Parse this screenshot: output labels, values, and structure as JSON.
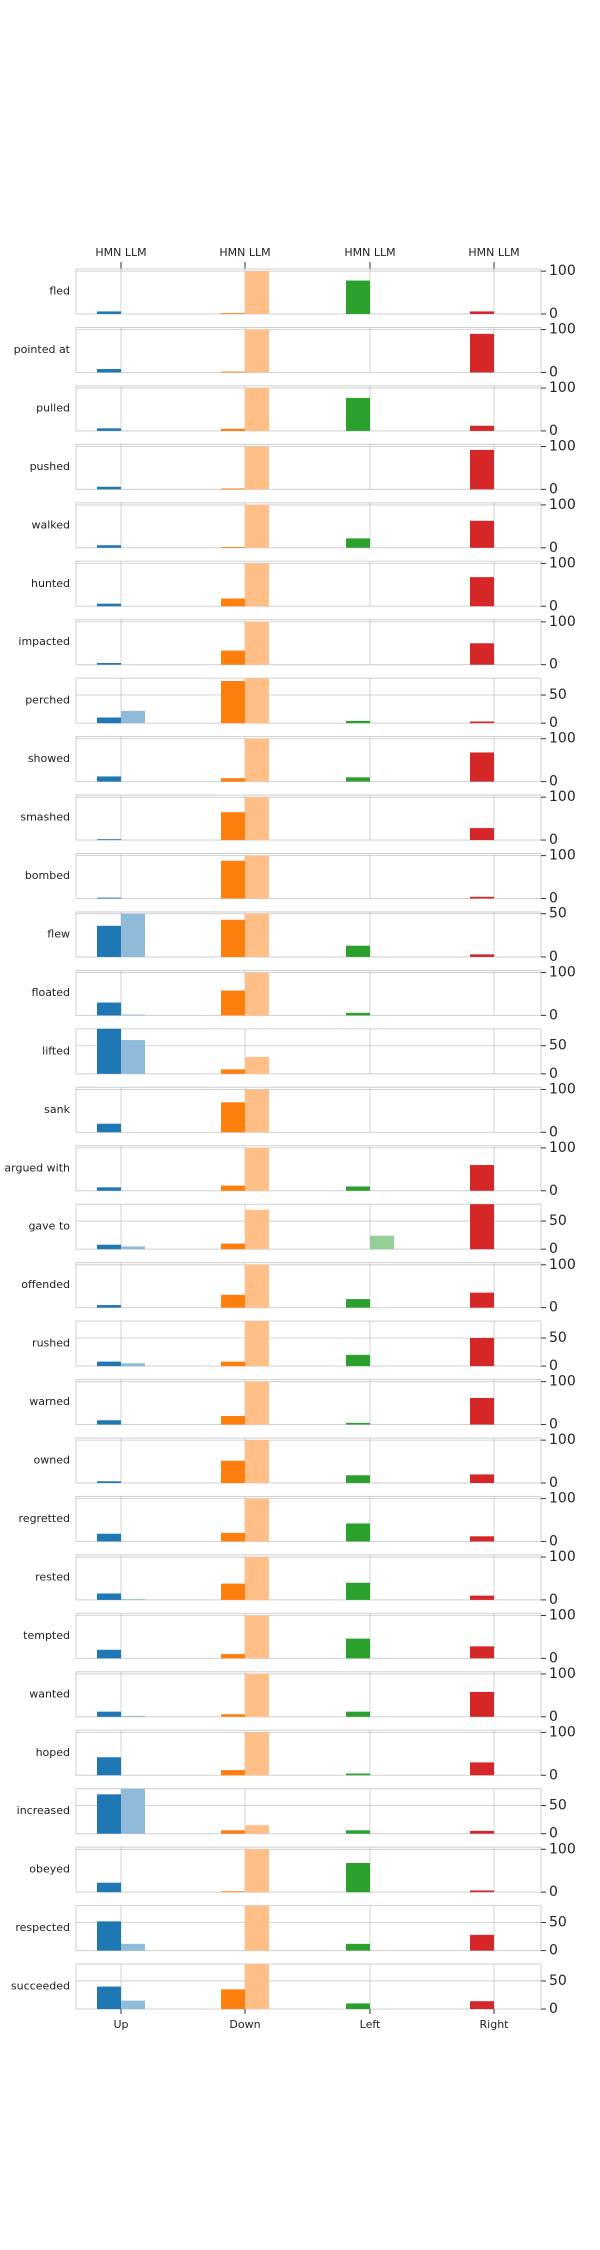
{
  "chart_data": {
    "type": "bar",
    "categories": [
      "Up",
      "Down",
      "Left",
      "Right"
    ],
    "series": [
      {
        "name": "HMN"
      },
      {
        "name": "LLM"
      }
    ],
    "top_tick_label": "HMN LLM",
    "colors": {
      "Up": [
        "#1f77b4",
        "#8fbbd9"
      ],
      "Down": [
        "#ff7f0e",
        "#ffbf86"
      ],
      "Left": [
        "#2ca02c",
        "#95cf95"
      ],
      "Right": [
        "#d62728",
        "#ea9293"
      ],
      "grid": "#b0b0b0"
    },
    "rows": [
      {
        "verb": "fled",
        "yticks": [
          0,
          100
        ],
        "ymax": 105,
        "values": [
          [
            6,
            0
          ],
          [
            2,
            100
          ],
          [
            78,
            0
          ],
          [
            6,
            0
          ]
        ]
      },
      {
        "verb": "pointed at",
        "yticks": [
          0,
          100
        ],
        "ymax": 105,
        "values": [
          [
            8,
            0
          ],
          [
            2,
            100
          ],
          [
            0,
            0
          ],
          [
            90,
            0
          ]
        ]
      },
      {
        "verb": "pulled",
        "yticks": [
          0,
          100
        ],
        "ymax": 105,
        "values": [
          [
            6,
            0
          ],
          [
            5,
            100
          ],
          [
            77,
            0
          ],
          [
            12,
            0
          ]
        ]
      },
      {
        "verb": "pushed",
        "yticks": [
          0,
          100
        ],
        "ymax": 105,
        "values": [
          [
            6,
            0
          ],
          [
            2,
            100
          ],
          [
            0,
            0
          ],
          [
            92,
            0
          ]
        ]
      },
      {
        "verb": "walked",
        "yticks": [
          0,
          100
        ],
        "ymax": 105,
        "values": [
          [
            6,
            0
          ],
          [
            2,
            100
          ],
          [
            22,
            0
          ],
          [
            63,
            0
          ]
        ]
      },
      {
        "verb": "hunted",
        "yticks": [
          0,
          100
        ],
        "ymax": 105,
        "values": [
          [
            6,
            0
          ],
          [
            18,
            100
          ],
          [
            0,
            0
          ],
          [
            68,
            0
          ]
        ]
      },
      {
        "verb": "impacted",
        "yticks": [
          0,
          100
        ],
        "ymax": 105,
        "values": [
          [
            4,
            0
          ],
          [
            33,
            100
          ],
          [
            0,
            0
          ],
          [
            50,
            0
          ]
        ]
      },
      {
        "verb": "perched",
        "yticks": [
          0,
          50
        ],
        "ymax": 80,
        "values": [
          [
            10,
            22
          ],
          [
            75,
            80
          ],
          [
            4,
            0
          ],
          [
            3,
            0
          ]
        ]
      },
      {
        "verb": "showed",
        "yticks": [
          0,
          100
        ],
        "ymax": 105,
        "values": [
          [
            12,
            0
          ],
          [
            8,
            100
          ],
          [
            10,
            0
          ],
          [
            68,
            0
          ]
        ]
      },
      {
        "verb": "smashed",
        "yticks": [
          0,
          100
        ],
        "ymax": 105,
        "values": [
          [
            2,
            0
          ],
          [
            65,
            100
          ],
          [
            0,
            0
          ],
          [
            28,
            0
          ]
        ]
      },
      {
        "verb": "bombed",
        "yticks": [
          0,
          100
        ],
        "ymax": 105,
        "values": [
          [
            2,
            0
          ],
          [
            88,
            100
          ],
          [
            0,
            0
          ],
          [
            4,
            0
          ]
        ]
      },
      {
        "verb": "flew",
        "yticks": [
          0,
          50
        ],
        "ymax": 52,
        "values": [
          [
            36,
            50
          ],
          [
            43,
            50
          ],
          [
            13,
            0
          ],
          [
            3,
            0
          ]
        ]
      },
      {
        "verb": "floated",
        "yticks": [
          0,
          100
        ],
        "ymax": 105,
        "values": [
          [
            30,
            2
          ],
          [
            58,
            100
          ],
          [
            6,
            0
          ],
          [
            0,
            0
          ]
        ]
      },
      {
        "verb": "lifted",
        "yticks": [
          0,
          50
        ],
        "ymax": 80,
        "values": [
          [
            80,
            60
          ],
          [
            8,
            30
          ],
          [
            0,
            0
          ],
          [
            0,
            0
          ]
        ]
      },
      {
        "verb": "sank",
        "yticks": [
          0,
          100
        ],
        "ymax": 105,
        "values": [
          [
            20,
            0
          ],
          [
            70,
            100
          ],
          [
            0,
            0
          ],
          [
            0,
            0
          ]
        ]
      },
      {
        "verb": "argued with",
        "yticks": [
          0,
          100
        ],
        "ymax": 105,
        "values": [
          [
            8,
            0
          ],
          [
            12,
            100
          ],
          [
            10,
            0
          ],
          [
            60,
            0
          ]
        ]
      },
      {
        "verb": "gave to",
        "yticks": [
          0,
          50
        ],
        "ymax": 80,
        "values": [
          [
            8,
            5
          ],
          [
            10,
            70
          ],
          [
            0,
            24
          ],
          [
            80,
            0
          ]
        ]
      },
      {
        "verb": "offended",
        "yticks": [
          0,
          100
        ],
        "ymax": 105,
        "values": [
          [
            6,
            0
          ],
          [
            30,
            100
          ],
          [
            20,
            0
          ],
          [
            35,
            0
          ]
        ]
      },
      {
        "verb": "rushed",
        "yticks": [
          0,
          50
        ],
        "ymax": 80,
        "values": [
          [
            8,
            5
          ],
          [
            8,
            80
          ],
          [
            20,
            0
          ],
          [
            50,
            0
          ]
        ]
      },
      {
        "verb": "warned",
        "yticks": [
          0,
          100
        ],
        "ymax": 105,
        "values": [
          [
            10,
            0
          ],
          [
            20,
            100
          ],
          [
            4,
            0
          ],
          [
            62,
            0
          ]
        ]
      },
      {
        "verb": "owned",
        "yticks": [
          0,
          100
        ],
        "ymax": 105,
        "values": [
          [
            4,
            0
          ],
          [
            52,
            100
          ],
          [
            18,
            0
          ],
          [
            20,
            0
          ]
        ]
      },
      {
        "verb": "regretted",
        "yticks": [
          0,
          100
        ],
        "ymax": 105,
        "values": [
          [
            18,
            0
          ],
          [
            20,
            100
          ],
          [
            42,
            0
          ],
          [
            12,
            0
          ]
        ]
      },
      {
        "verb": "rested",
        "yticks": [
          0,
          100
        ],
        "ymax": 105,
        "values": [
          [
            15,
            2
          ],
          [
            38,
            100
          ],
          [
            40,
            0
          ],
          [
            10,
            0
          ]
        ]
      },
      {
        "verb": "tempted",
        "yticks": [
          0,
          100
        ],
        "ymax": 105,
        "values": [
          [
            20,
            0
          ],
          [
            10,
            100
          ],
          [
            46,
            0
          ],
          [
            28,
            0
          ]
        ]
      },
      {
        "verb": "wanted",
        "yticks": [
          0,
          100
        ],
        "ymax": 105,
        "values": [
          [
            12,
            2
          ],
          [
            6,
            100
          ],
          [
            12,
            0
          ],
          [
            58,
            0
          ]
        ]
      },
      {
        "verb": "hoped",
        "yticks": [
          0,
          100
        ],
        "ymax": 105,
        "values": [
          [
            42,
            0
          ],
          [
            12,
            100
          ],
          [
            4,
            0
          ],
          [
            30,
            0
          ]
        ]
      },
      {
        "verb": "increased",
        "yticks": [
          0,
          50
        ],
        "ymax": 80,
        "values": [
          [
            70,
            80
          ],
          [
            6,
            15
          ],
          [
            6,
            0
          ],
          [
            5,
            0
          ]
        ]
      },
      {
        "verb": "obeyed",
        "yticks": [
          0,
          100
        ],
        "ymax": 105,
        "values": [
          [
            22,
            0
          ],
          [
            2,
            100
          ],
          [
            68,
            0
          ],
          [
            4,
            0
          ]
        ]
      },
      {
        "verb": "respected",
        "yticks": [
          0,
          50
        ],
        "ymax": 80,
        "values": [
          [
            52,
            12
          ],
          [
            0,
            80
          ],
          [
            12,
            0
          ],
          [
            28,
            0
          ]
        ]
      },
      {
        "verb": "succeeded",
        "yticks": [
          0,
          50
        ],
        "ymax": 80,
        "values": [
          [
            40,
            15
          ],
          [
            35,
            80
          ],
          [
            10,
            0
          ],
          [
            14,
            0
          ]
        ]
      }
    ]
  }
}
